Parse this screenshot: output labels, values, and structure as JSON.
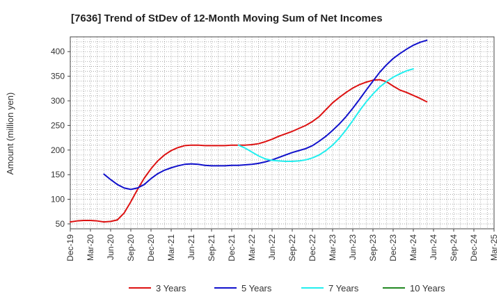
{
  "chart_data": {
    "type": "line",
    "title": "[7636]  Trend of StDev of 12-Month Moving Sum of Net Incomes",
    "ylabel": "Amount (million yen)",
    "xlabel": "",
    "ylim": [
      40,
      430
    ],
    "yticks": [
      50,
      100,
      150,
      200,
      250,
      300,
      350,
      400
    ],
    "xtick_labels": [
      "Dec-19",
      "Mar-20",
      "Jun-20",
      "Sep-20",
      "Dec-20",
      "Mar-21",
      "Jun-21",
      "Sep-21",
      "Dec-21",
      "Mar-22",
      "Jun-22",
      "Sep-22",
      "Dec-22",
      "Mar-23",
      "Jun-23",
      "Sep-23",
      "Dec-23",
      "Mar-24",
      "Jun-24",
      "Sep-24",
      "Dec-24",
      "Mar-25"
    ],
    "grid": true,
    "legend_position": "bottom",
    "series": [
      {
        "name": "3 Years",
        "color": "#dd1111",
        "values": [
          [
            0,
            54
          ],
          [
            1,
            56
          ],
          [
            2,
            57
          ],
          [
            3,
            57
          ],
          [
            4,
            56
          ],
          [
            5,
            54
          ],
          [
            6,
            55
          ],
          [
            7,
            58
          ],
          [
            8,
            72
          ],
          [
            9,
            95
          ],
          [
            10,
            120
          ],
          [
            11,
            143
          ],
          [
            12,
            162
          ],
          [
            13,
            178
          ],
          [
            14,
            190
          ],
          [
            15,
            199
          ],
          [
            16,
            205
          ],
          [
            17,
            209
          ],
          [
            18,
            210
          ],
          [
            19,
            210
          ],
          [
            20,
            209
          ],
          [
            21,
            209
          ],
          [
            22,
            209
          ],
          [
            23,
            209
          ],
          [
            24,
            210
          ],
          [
            25,
            210
          ],
          [
            26,
            210
          ],
          [
            27,
            211
          ],
          [
            28,
            213
          ],
          [
            29,
            217
          ],
          [
            30,
            222
          ],
          [
            31,
            228
          ],
          [
            32,
            233
          ],
          [
            33,
            238
          ],
          [
            34,
            244
          ],
          [
            35,
            250
          ],
          [
            36,
            258
          ],
          [
            37,
            268
          ],
          [
            38,
            282
          ],
          [
            39,
            296
          ],
          [
            40,
            307
          ],
          [
            41,
            317
          ],
          [
            42,
            326
          ],
          [
            43,
            333
          ],
          [
            44,
            338
          ],
          [
            45,
            342
          ],
          [
            46,
            343
          ],
          [
            47,
            339
          ],
          [
            48,
            330
          ],
          [
            49,
            322
          ],
          [
            50,
            317
          ],
          [
            51,
            311
          ],
          [
            52,
            305
          ],
          [
            53,
            298
          ]
        ]
      },
      {
        "name": "5 Years",
        "color": "#1111cc",
        "values": [
          [
            5,
            151
          ],
          [
            6,
            140
          ],
          [
            7,
            130
          ],
          [
            8,
            123
          ],
          [
            9,
            120
          ],
          [
            10,
            123
          ],
          [
            11,
            130
          ],
          [
            12,
            142
          ],
          [
            13,
            152
          ],
          [
            14,
            159
          ],
          [
            15,
            164
          ],
          [
            16,
            168
          ],
          [
            17,
            171
          ],
          [
            18,
            172
          ],
          [
            19,
            171
          ],
          [
            20,
            169
          ],
          [
            21,
            168
          ],
          [
            22,
            168
          ],
          [
            23,
            168
          ],
          [
            24,
            169
          ],
          [
            25,
            169
          ],
          [
            26,
            170
          ],
          [
            27,
            171
          ],
          [
            28,
            173
          ],
          [
            29,
            176
          ],
          [
            30,
            180
          ],
          [
            31,
            185
          ],
          [
            32,
            190
          ],
          [
            33,
            195
          ],
          [
            34,
            199
          ],
          [
            35,
            203
          ],
          [
            36,
            209
          ],
          [
            37,
            218
          ],
          [
            38,
            228
          ],
          [
            39,
            240
          ],
          [
            40,
            253
          ],
          [
            41,
            268
          ],
          [
            42,
            285
          ],
          [
            43,
            303
          ],
          [
            44,
            322
          ],
          [
            45,
            340
          ],
          [
            46,
            358
          ],
          [
            47,
            373
          ],
          [
            48,
            386
          ],
          [
            49,
            396
          ],
          [
            50,
            405
          ],
          [
            51,
            413
          ],
          [
            52,
            419
          ],
          [
            53,
            423
          ]
        ]
      },
      {
        "name": "7 Years",
        "color": "#22eeee",
        "values": [
          [
            25,
            210
          ],
          [
            26,
            204
          ],
          [
            27,
            196
          ],
          [
            28,
            188
          ],
          [
            29,
            182
          ],
          [
            30,
            179
          ],
          [
            31,
            178
          ],
          [
            32,
            177
          ],
          [
            33,
            177
          ],
          [
            34,
            178
          ],
          [
            35,
            180
          ],
          [
            36,
            184
          ],
          [
            37,
            190
          ],
          [
            38,
            199
          ],
          [
            39,
            210
          ],
          [
            40,
            224
          ],
          [
            41,
            241
          ],
          [
            42,
            260
          ],
          [
            43,
            280
          ],
          [
            44,
            298
          ],
          [
            45,
            314
          ],
          [
            46,
            328
          ],
          [
            47,
            339
          ],
          [
            48,
            348
          ],
          [
            49,
            355
          ],
          [
            50,
            361
          ],
          [
            51,
            365
          ]
        ]
      },
      {
        "name": "10 Years",
        "color": "#228822",
        "values": []
      }
    ]
  }
}
